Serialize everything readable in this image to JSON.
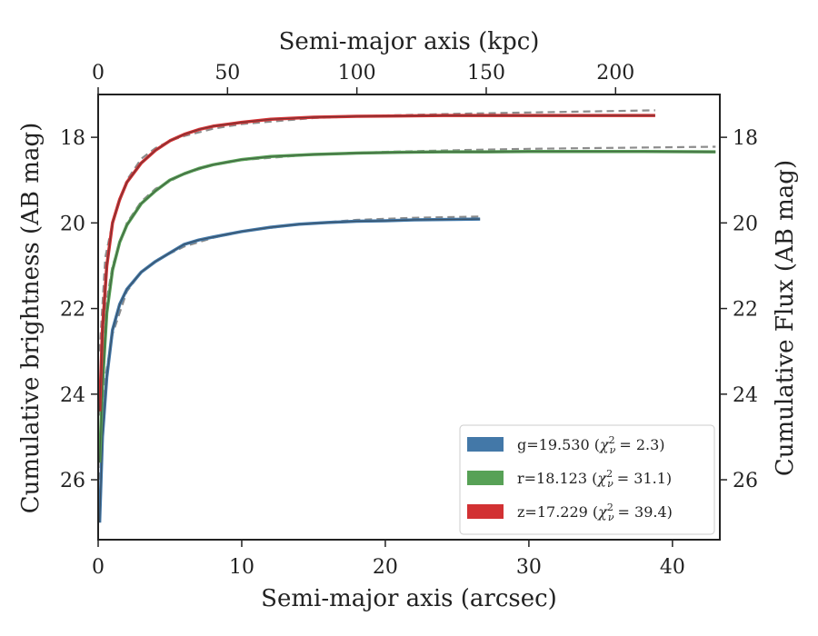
{
  "chart_data": {
    "type": "line",
    "xlabel_bottom": "Semi-major axis (arcsec)",
    "xlabel_top": "Semi-major axis (kpc)",
    "ylabel_left": "Cumulative brightness (AB mag)",
    "ylabel_right": "Cumulative Flux (AB mag)",
    "xlim": [
      0,
      43.3
    ],
    "ylim": [
      27.4,
      17.0
    ],
    "top_xlim": [
      0,
      240.3
    ],
    "x_ticks": [
      0,
      10,
      20,
      30,
      40
    ],
    "x_tick_labels": [
      "0",
      "10",
      "20",
      "30",
      "40"
    ],
    "top_ticks": [
      0,
      50,
      100,
      150,
      200
    ],
    "top_tick_labels": [
      "0",
      "50",
      "100",
      "150",
      "200"
    ],
    "y_ticks": [
      18,
      20,
      22,
      24,
      26
    ],
    "y_tick_labels": [
      "18",
      "20",
      "22",
      "24",
      "26"
    ],
    "legend_position": "lower-right",
    "model_color": "#8c8c8c",
    "series": [
      {
        "label_main": "g=19.530 (",
        "label_chi": "= 2.3)",
        "color": "#4378a8",
        "x": [
          0.1,
          0.3,
          0.6,
          1.0,
          1.5,
          2.0,
          3.0,
          4.0,
          5.0,
          6.0,
          7.0,
          8.0,
          10.0,
          12.0,
          14.0,
          16.0,
          18.0,
          20.0,
          22.0,
          24.0,
          26.6
        ],
        "y": [
          27.0,
          25.0,
          23.6,
          22.5,
          21.9,
          21.55,
          21.15,
          20.9,
          20.7,
          20.5,
          20.4,
          20.33,
          20.2,
          20.1,
          20.03,
          19.99,
          19.96,
          19.95,
          19.93,
          19.92,
          19.91
        ],
        "model_x": [
          0.1,
          0.5,
          1.0,
          2.0,
          3.0,
          4.0,
          6.0,
          8.0,
          10.0,
          14.0,
          18.0,
          22.0,
          26.6
        ],
        "model_y": [
          26.0,
          23.6,
          22.6,
          21.6,
          21.15,
          20.88,
          20.55,
          20.35,
          20.2,
          20.03,
          19.93,
          19.88,
          19.85
        ]
      },
      {
        "label_main": "r=18.123 (",
        "label_chi": "= 31.1)",
        "color": "#57a156",
        "x": [
          0.1,
          0.3,
          0.6,
          1.0,
          1.5,
          2.0,
          3.0,
          4.0,
          5.0,
          6.0,
          7.0,
          8.0,
          10.0,
          12.0,
          15.0,
          18.0,
          21.0,
          24.0,
          27.0,
          30.0,
          34.0,
          38.0,
          43.0
        ],
        "y": [
          25.6,
          23.8,
          22.1,
          21.1,
          20.45,
          20.05,
          19.55,
          19.25,
          19.0,
          18.85,
          18.73,
          18.64,
          18.52,
          18.45,
          18.4,
          18.37,
          18.35,
          18.34,
          18.34,
          18.33,
          18.33,
          18.33,
          18.34
        ],
        "model_x": [
          0.1,
          0.5,
          1.0,
          2.0,
          3.0,
          4.0,
          6.0,
          8.0,
          10.0,
          15.0,
          20.0,
          25.0,
          30.0,
          35.0,
          43.0
        ],
        "model_y": [
          24.5,
          22.0,
          21.0,
          20.0,
          19.5,
          19.2,
          18.85,
          18.65,
          18.53,
          18.4,
          18.34,
          18.3,
          18.27,
          18.25,
          18.22
        ]
      },
      {
        "label_main": "z=17.229 (",
        "label_chi": "= 39.4)",
        "color": "#d23133",
        "x": [
          0.1,
          0.3,
          0.6,
          1.0,
          1.5,
          2.0,
          3.0,
          4.0,
          5.0,
          6.0,
          7.0,
          8.0,
          10.0,
          12.0,
          15.0,
          18.0,
          21.0,
          24.0,
          27.0,
          30.0,
          34.0,
          38.8
        ],
        "y": [
          24.4,
          22.5,
          21.0,
          20.0,
          19.45,
          19.05,
          18.6,
          18.3,
          18.08,
          17.93,
          17.82,
          17.74,
          17.65,
          17.58,
          17.53,
          17.51,
          17.5,
          17.49,
          17.49,
          17.49,
          17.49,
          17.49
        ],
        "model_x": [
          0.1,
          0.5,
          1.0,
          2.0,
          3.0,
          4.0,
          5.0,
          6.0,
          8.0,
          10.0,
          15.0,
          20.0,
          25.0,
          30.0,
          38.8
        ],
        "model_y": [
          23.0,
          20.8,
          20.0,
          19.0,
          18.5,
          18.25,
          18.08,
          17.97,
          17.8,
          17.69,
          17.55,
          17.49,
          17.45,
          17.42,
          17.37
        ]
      }
    ]
  }
}
